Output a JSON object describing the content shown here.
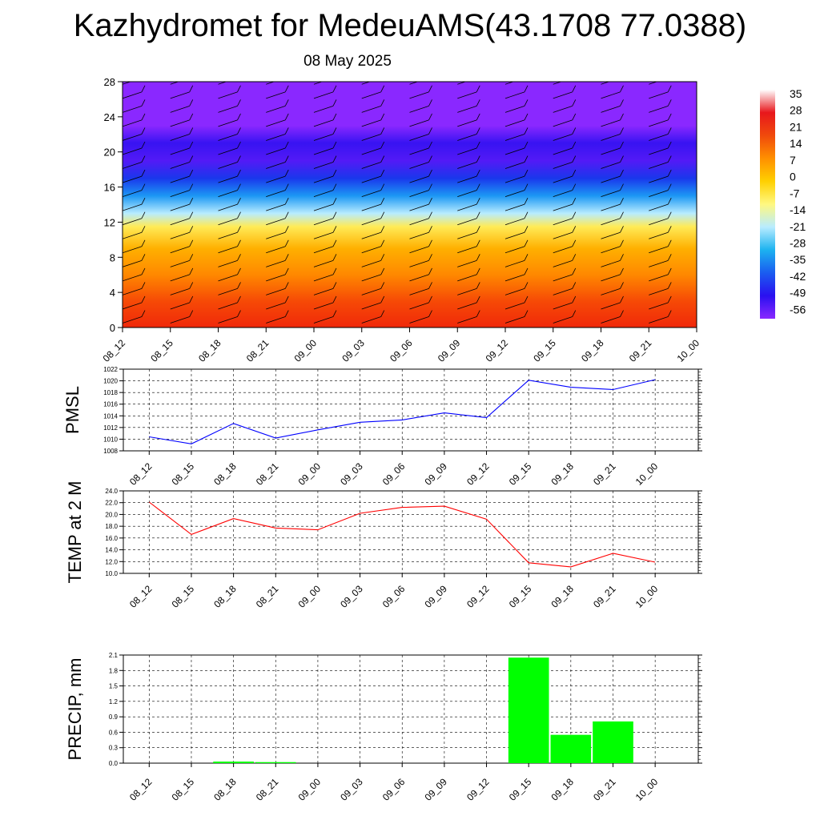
{
  "title": "Kazhydromet for MedeuAMS(43.1708 77.0388)",
  "subtitle": "08 May 2025",
  "time_labels": [
    "08_12",
    "08_15",
    "08_18",
    "08_21",
    "09_00",
    "09_03",
    "09_06",
    "09_09",
    "09_12",
    "09_15",
    "09_18",
    "09_21",
    "10_00"
  ],
  "colorbar": {
    "labels": [
      "35",
      "28",
      "21",
      "14",
      "7",
      "0",
      "-7",
      "-14",
      "-21",
      "-28",
      "-35",
      "-42",
      "-49",
      "-56"
    ],
    "stops": [
      "#ffffff",
      "#e8171c",
      "#f04a0c",
      "#ff9000",
      "#ffd000",
      "#fff880",
      "#b8ecff",
      "#1cb2f0",
      "#1a5cf0",
      "#2a10f0",
      "#8a28ff"
    ]
  },
  "chart_data": [
    {
      "type": "heatmap",
      "title": "",
      "x": [
        "08_12",
        "08_15",
        "08_18",
        "08_21",
        "09_00",
        "09_03",
        "09_06",
        "09_09",
        "09_12",
        "09_15",
        "09_18",
        "09_21",
        "10_00"
      ],
      "ylim": [
        0,
        28
      ],
      "yticks": [
        "0",
        "4",
        "8",
        "12",
        "16",
        "20",
        "24",
        "28"
      ],
      "legend_range": [
        -56,
        35
      ],
      "color_bands": [
        {
          "y": 0,
          "value": 21
        },
        {
          "y": 3,
          "value": 18
        },
        {
          "y": 6,
          "value": 12
        },
        {
          "y": 9,
          "value": 7
        },
        {
          "y": 11.5,
          "value": -3
        },
        {
          "y": 13,
          "value": -14
        },
        {
          "y": 15,
          "value": -26
        },
        {
          "y": 17,
          "value": -40
        },
        {
          "y": 19,
          "value": -52
        },
        {
          "y": 21,
          "value": -50
        },
        {
          "y": 23,
          "value": -56
        },
        {
          "y": 28,
          "value": -56
        }
      ]
    },
    {
      "type": "line",
      "ylabel": "PMSL",
      "x": [
        "08_12",
        "08_15",
        "08_18",
        "08_21",
        "09_00",
        "09_03",
        "09_06",
        "09_09",
        "09_12",
        "09_15",
        "09_18",
        "09_21",
        "10_00"
      ],
      "series": [
        {
          "color": "#0000ff",
          "values": [
            1010.4,
            1009.2,
            1012.7,
            1010.2,
            1011.6,
            1012.9,
            1013.3,
            1014.5,
            1013.7,
            1020.1,
            1018.9,
            1018.5,
            1020.2
          ]
        }
      ],
      "ylim": [
        1008,
        1022
      ],
      "yticks": [
        "1008",
        "1010",
        "1012",
        "1014",
        "1016",
        "1018",
        "1020",
        "1022"
      ]
    },
    {
      "type": "line",
      "ylabel": "TEMP at 2 M",
      "x": [
        "08_12",
        "08_15",
        "08_18",
        "08_21",
        "09_00",
        "09_03",
        "09_06",
        "09_09",
        "09_12",
        "09_15",
        "09_18",
        "09_21",
        "10_00"
      ],
      "series": [
        {
          "color": "#ff0000",
          "values": [
            22.1,
            16.6,
            19.3,
            17.7,
            17.4,
            20.2,
            21.2,
            21.4,
            19.2,
            11.8,
            11.1,
            13.4,
            11.9
          ]
        }
      ],
      "ylim": [
        10,
        24
      ],
      "yticks": [
        "10.0",
        "12.0",
        "14.0",
        "16.0",
        "18.0",
        "20.0",
        "22.0",
        "24.0"
      ]
    },
    {
      "type": "bar",
      "ylabel": "PRECIP, mm",
      "x": [
        "08_12",
        "08_15",
        "08_18",
        "08_21",
        "09_00",
        "09_03",
        "09_06",
        "09_09",
        "09_12",
        "09_15",
        "09_18",
        "09_21",
        "10_00"
      ],
      "series": [
        {
          "color": "#00ff00",
          "values": [
            0,
            0,
            0.03,
            0.02,
            0,
            0,
            0,
            0,
            0,
            2.05,
            0.55,
            0.81,
            0
          ]
        }
      ],
      "ylim": [
        0,
        2.1
      ],
      "yticks": [
        "0.0",
        "0.3",
        "0.6",
        "0.9",
        "1.2",
        "1.5",
        "1.8",
        "2.1"
      ]
    }
  ]
}
